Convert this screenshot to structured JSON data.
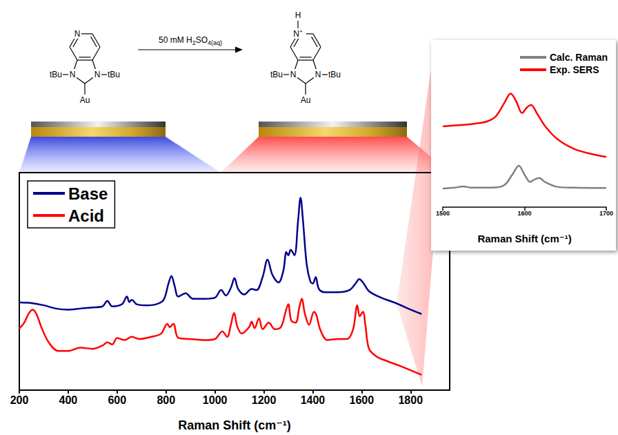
{
  "chart_data": [
    {
      "type": "line",
      "x_label": "Raman Shift (cm⁻¹)",
      "xlim": [
        200,
        1960
      ],
      "xticks": [
        200,
        400,
        600,
        800,
        1000,
        1200,
        1400,
        1600,
        1800
      ],
      "ylim": [
        0,
        100
      ],
      "tick_labels": "x",
      "grid": false,
      "legend": "top-left",
      "series": [
        {
          "name": "Base",
          "color": "#00008b",
          "x": [
            200,
            250,
            300,
            350,
            400,
            450,
            500,
            540,
            560,
            580,
            620,
            640,
            650,
            660,
            680,
            720,
            760,
            790,
            810,
            822,
            835,
            850,
            880,
            910,
            960,
            1000,
            1025,
            1045,
            1065,
            1080,
            1095,
            1120,
            1150,
            1170,
            1195,
            1215,
            1235,
            1260,
            1280,
            1292,
            1300,
            1310,
            1325,
            1340,
            1350,
            1360,
            1375,
            1390,
            1400,
            1412,
            1425,
            1450,
            1500,
            1550,
            1575,
            1590,
            1605,
            1630,
            1680,
            1740,
            1800,
            1845
          ],
          "values": [
            40.3,
            40.0,
            39.0,
            37.5,
            37.0,
            37.5,
            38.0,
            38.5,
            41.0,
            38.5,
            39.5,
            43.0,
            40.5,
            41.5,
            39.5,
            39.0,
            39.5,
            41.5,
            49.0,
            52.5,
            48.0,
            43.0,
            44.5,
            42.0,
            42.0,
            42.5,
            46.0,
            43.5,
            47.0,
            51.5,
            46.5,
            44.0,
            46.5,
            46.0,
            52.0,
            60.0,
            53.0,
            49.5,
            55.0,
            63.5,
            62.0,
            64.5,
            62.0,
            78.0,
            88.5,
            78.0,
            58.0,
            50.0,
            49.0,
            52.0,
            46.5,
            45.0,
            45.0,
            46.0,
            49.0,
            51.0,
            49.5,
            45.5,
            42.5,
            40.0,
            37.0,
            35.0
          ]
        },
        {
          "name": "Acid",
          "color": "#ff0000",
          "x": [
            200,
            220,
            240,
            255,
            270,
            290,
            320,
            360,
            400,
            450,
            500,
            540,
            560,
            580,
            600,
            630,
            660,
            690,
            740,
            780,
            805,
            815,
            830,
            850,
            900,
            960,
            1000,
            1030,
            1050,
            1065,
            1078,
            1092,
            1110,
            1140,
            1150,
            1162,
            1180,
            1195,
            1220,
            1245,
            1270,
            1290,
            1300,
            1312,
            1330,
            1345,
            1355,
            1368,
            1385,
            1405,
            1415,
            1430,
            1460,
            1500,
            1540,
            1565,
            1582,
            1592,
            1605,
            1615,
            1630,
            1660,
            1700,
            1760,
            1845
          ],
          "values": [
            28.3,
            31.0,
            35.5,
            37.0,
            35.0,
            29.0,
            22.0,
            18.0,
            18.0,
            19.5,
            19.0,
            20.5,
            22.0,
            21.0,
            24.0,
            23.0,
            24.5,
            23.5,
            24.5,
            26.0,
            30.5,
            29.0,
            30.5,
            24.0,
            23.5,
            23.0,
            23.5,
            27.0,
            24.5,
            30.0,
            35.5,
            29.0,
            26.0,
            29.0,
            31.5,
            28.5,
            33.0,
            28.0,
            31.0,
            28.0,
            29.0,
            36.5,
            39.5,
            32.0,
            31.0,
            38.0,
            42.0,
            35.0,
            30.0,
            36.0,
            34.5,
            28.0,
            23.0,
            23.5,
            23.5,
            28.0,
            39.0,
            34.0,
            36.0,
            30.0,
            19.0,
            15.5,
            13.5,
            11.0,
            7.0
          ]
        }
      ]
    },
    {
      "type": "line",
      "x_label": "Raman Shift (cm⁻¹)",
      "xlim": [
        1500,
        1700
      ],
      "xticks": [
        1500,
        1600,
        1700
      ],
      "ylim": [
        0,
        100
      ],
      "tick_labels": "x",
      "grid": false,
      "legend": "top-right",
      "series": [
        {
          "name": "Calc. Raman",
          "color": "#808080",
          "x": [
            1500,
            1515,
            1525,
            1535,
            1560,
            1575,
            1585,
            1593,
            1600,
            1607,
            1612,
            1618,
            1625,
            1640,
            1660,
            1700
          ],
          "values": [
            11.5,
            12.0,
            12.8,
            12.0,
            12.0,
            13.5,
            20.0,
            25.5,
            20.0,
            15.5,
            17.0,
            18.0,
            15.5,
            12.5,
            12.0,
            11.8
          ]
        },
        {
          "name": "Exp. SERS",
          "color": "#ff0000",
          "x": [
            1500,
            1520,
            1540,
            1555,
            1565,
            1575,
            1583,
            1590,
            1597,
            1603,
            1608,
            1615,
            1625,
            1640,
            1660,
            1680,
            1700
          ],
          "values": [
            49.8,
            50.5,
            51.5,
            53.0,
            56.0,
            64.0,
            70.0,
            65.0,
            58.0,
            61.5,
            63.0,
            58.0,
            50.0,
            42.0,
            36.0,
            33.0,
            31.0
          ]
        }
      ]
    }
  ],
  "scheme": {
    "reagent": [
      {
        "text": "50 mM H"
      },
      {
        "text": "2",
        "sub": true
      },
      {
        "text": "SO"
      },
      {
        "text": "4",
        "sub": true
      },
      {
        "text": "(aq)",
        "sub": true
      }
    ],
    "reactant": {
      "ring_n": "N",
      "n_left": "N",
      "n_right": "N",
      "group_left": "tBu",
      "group_right": "tBu",
      "metal": "Au"
    },
    "product": {
      "ring_n": "N",
      "charge": "+",
      "proton": "H",
      "n_left": "N",
      "n_right": "N",
      "group_left": "tBu",
      "group_right": "tBu",
      "metal": "Au"
    }
  }
}
